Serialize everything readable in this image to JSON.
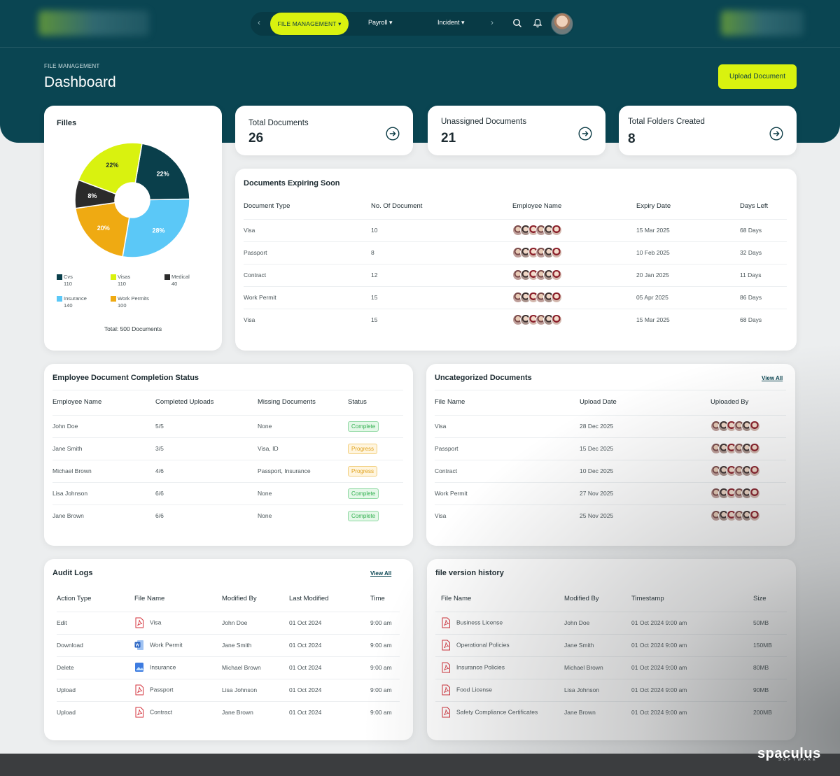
{
  "nav": {
    "items": [
      {
        "label": "FILE MANAGEMENT ▾"
      },
      {
        "label": "Payroll ▾"
      },
      {
        "label": "Incident ▾"
      }
    ]
  },
  "header": {
    "breadcrumb": "FILE MANAGEMENT",
    "title": "Dashboard",
    "upload_label": "Upload Document"
  },
  "stats": [
    {
      "label": "Total Documents",
      "value": "26"
    },
    {
      "label": "Unassigned Documents",
      "value": "21"
    },
    {
      "label": "Total Folders Created",
      "value": "8"
    }
  ],
  "files_card": {
    "title": "Filles",
    "total_label": "Total: 500 Documents"
  },
  "chart_data": {
    "type": "pie",
    "title": "Filles",
    "slices": [
      {
        "label": "Cvs",
        "value": 110,
        "percent_label": "22%",
        "color": "#0a3f4b"
      },
      {
        "label": "Insurance",
        "value": 140,
        "percent_label": "28%",
        "color": "#5bc8f7"
      },
      {
        "label": "Work Permits",
        "value": 100,
        "percent_label": "20%",
        "color": "#efaa12"
      },
      {
        "label": "Medical",
        "value": 40,
        "percent_label": "8%",
        "color": "#2b2b2b"
      },
      {
        "label": "Visas",
        "value": 110,
        "percent_label": "22%",
        "color": "#d9f20f"
      }
    ],
    "legend": [
      {
        "name": "Cvs",
        "value": "110",
        "color": "#0a3f4b"
      },
      {
        "name": "Visas",
        "value": "110",
        "color": "#d9f20f"
      },
      {
        "name": "Medical",
        "value": "40",
        "color": "#2b2b2b"
      },
      {
        "name": "Insurance",
        "value": "140",
        "color": "#5bc8f7"
      },
      {
        "name": "Work Permits",
        "value": "100",
        "color": "#efaa12"
      }
    ],
    "total": 500
  },
  "expiring": {
    "title": "Documents Expiring Soon",
    "headers": [
      "Document Type",
      "No. Of Document",
      "Employee Name",
      "Expiry Date",
      "Days Left"
    ],
    "rows": [
      {
        "type": "Visa",
        "count": "10",
        "expiry": "15 Mar 2025",
        "days": "68 Days"
      },
      {
        "type": "Passport",
        "count": "8",
        "expiry": "10 Feb 2025",
        "days": "32 Days"
      },
      {
        "type": "Contract",
        "count": "12",
        "expiry": "20 Jan 2025",
        "days": "11 Days"
      },
      {
        "type": "Work Permit",
        "count": "15",
        "expiry": "05 Apr 2025",
        "days": "86 Days"
      },
      {
        "type": "Visa",
        "count": "15",
        "expiry": "15 Mar 2025",
        "days": "68 Days"
      }
    ]
  },
  "completion": {
    "title": "Employee Document Completion Status",
    "headers": [
      "Employee Name",
      "Completed Uploads",
      "Missing Documents",
      "Status"
    ],
    "rows": [
      {
        "name": "John Doe",
        "completed": "5/5",
        "missing": "None",
        "status": "Complete"
      },
      {
        "name": "Jane Smith",
        "completed": "3/5",
        "missing": "Visa, ID",
        "status": "Progress"
      },
      {
        "name": "Michael Brown",
        "completed": "4/6",
        "missing": "Passport, Insurance",
        "status": "Progress"
      },
      {
        "name": "Lisa Johnson",
        "completed": "6/6",
        "missing": "None",
        "status": "Complete"
      },
      {
        "name": "Jane Brown",
        "completed": "6/6",
        "missing": "None",
        "status": "Complete"
      }
    ]
  },
  "uncategorized": {
    "title": "Uncategorized Documents",
    "view_all": "View All",
    "headers": [
      "File Name",
      "Upload Date",
      "Uploaded By"
    ],
    "rows": [
      {
        "file": "Visa",
        "date": "28 Dec 2025"
      },
      {
        "file": "Passport",
        "date": "15 Dec 2025"
      },
      {
        "file": "Contract",
        "date": "10 Dec 2025"
      },
      {
        "file": "Work Permit",
        "date": "27 Nov 2025"
      },
      {
        "file": "Visa",
        "date": "25 Nov 2025"
      }
    ]
  },
  "audit": {
    "title": "Audit Logs",
    "view_all": "View All",
    "headers": [
      "Action Type",
      "File Name",
      "Modified By",
      "Last Modified",
      "Time"
    ],
    "rows": [
      {
        "action": "Edit",
        "icon": "pdf-icon",
        "file": "Visa",
        "by": "John Doe",
        "date": "01 Oct 2024",
        "time": "9:00 am"
      },
      {
        "action": "Download",
        "icon": "word-icon",
        "file": "Work Permit",
        "by": "Jane Smith",
        "date": "01 Oct 2024",
        "time": "9:00 am"
      },
      {
        "action": "Delete",
        "icon": "image-icon",
        "file": "Insurance",
        "by": "Michael Brown",
        "date": "01 Oct 2024",
        "time": "9:00 am"
      },
      {
        "action": "Upload",
        "icon": "pdf-icon",
        "file": "Passport",
        "by": "Lisa Johnson",
        "date": "01 Oct 2024",
        "time": "9:00 am"
      },
      {
        "action": "Upload",
        "icon": "pdf-icon",
        "file": "Contract",
        "by": "Jane Brown",
        "date": "01 Oct 2024",
        "time": "9:00 am"
      }
    ]
  },
  "versions": {
    "title": "file version history",
    "headers": [
      "File Name",
      "Modified By",
      "Timestamp",
      "Size"
    ],
    "rows": [
      {
        "icon": "pdf-icon",
        "file": "Business License",
        "by": "John Doe",
        "ts": "01 Oct 2024  9:00 am",
        "size": "50MB"
      },
      {
        "icon": "pdf-icon",
        "file": "Operational Policies",
        "by": "Jane Smith",
        "ts": "01 Oct 2024  9:00 am",
        "size": "150MB"
      },
      {
        "icon": "pdf-icon",
        "file": "Insurance Policies",
        "by": "Michael Brown",
        "ts": "01 Oct 2024  9:00 am",
        "size": "80MB"
      },
      {
        "icon": "pdf-icon",
        "file": "Food License",
        "by": "Lisa Johnson",
        "ts": "01 Oct 2024  9:00 am",
        "size": "90MB"
      },
      {
        "icon": "pdf-icon",
        "file": "Safety Compliance Certificates",
        "by": "Jane Brown",
        "ts": "01 Oct 2024  9:00 am",
        "size": "200MB"
      }
    ]
  },
  "brand": {
    "name": "spaculus",
    "sub": "SOFTWARE"
  }
}
